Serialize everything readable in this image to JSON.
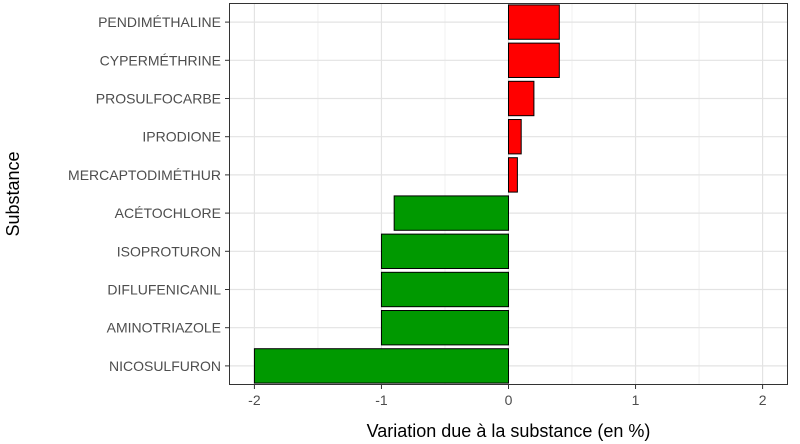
{
  "chart_data": {
    "type": "bar",
    "orientation": "horizontal",
    "xlabel": "Variation due à la substance (en %)",
    "ylabel": "Substance",
    "xlim": [
      -2.2,
      2.2
    ],
    "xticks": [
      -2,
      -1,
      0,
      1,
      2
    ],
    "xtick_labels": [
      "-2",
      "-1",
      "0",
      "1",
      "2"
    ],
    "grid": true,
    "categories": [
      "PENDIMÉTHALINE",
      "CYPERMÉTHRINE",
      "PROSULFOCARBE",
      "IPRODIONE",
      "MERCAPTODIMÉTHUR",
      "ACÉTOCHLORE",
      "ISOPROTURON",
      "DIFLUFENICANIL",
      "AMINOTRIAZOLE",
      "NICOSULFURON"
    ],
    "values": [
      0.4,
      0.4,
      0.2,
      0.1,
      0.07,
      -0.9,
      -1.0,
      -1.0,
      -1.0,
      -2.0
    ],
    "colors": {
      "positive": "#ff0000",
      "negative": "#009900",
      "bar_outline": "#000000"
    }
  }
}
